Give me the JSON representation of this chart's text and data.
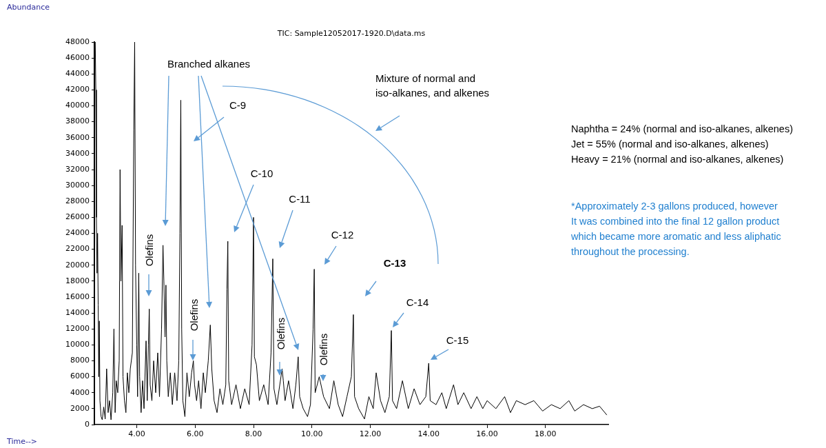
{
  "chart_data": {
    "type": "line",
    "title": "TIC: Sample12052017-1920.D\\data.ms",
    "xlabel": "Time-->",
    "ylabel": "Abundance",
    "xlim": [
      2.55,
      20.15
    ],
    "ylim": [
      0,
      48000
    ],
    "xticks": [
      {
        "value": 4,
        "label": "4.00"
      },
      {
        "value": 6,
        "label": "6.00"
      },
      {
        "value": 8,
        "label": "8.00"
      },
      {
        "value": 10,
        "label": "10.00"
      },
      {
        "value": 12,
        "label": "12.00"
      },
      {
        "value": 14,
        "label": "14.00"
      },
      {
        "value": 16,
        "label": "16.00"
      },
      {
        "value": 18,
        "label": "18.00"
      }
    ],
    "yticks": [
      0,
      2000,
      4000,
      6000,
      8000,
      10000,
      12000,
      14000,
      16000,
      18000,
      20000,
      22000,
      24000,
      26000,
      28000,
      30000,
      32000,
      34000,
      36000,
      38000,
      40000,
      42000,
      44000,
      46000,
      48000
    ],
    "grid": false,
    "legend": false,
    "series": [
      {
        "color": "#000000",
        "x": [
          2.55,
          2.58,
          2.6,
          2.62,
          2.64,
          2.66,
          2.68,
          2.7,
          2.72,
          2.74,
          2.78,
          2.82,
          2.87,
          2.92,
          2.97,
          3.02,
          3.07,
          3.12,
          3.18,
          3.22,
          3.26,
          3.3,
          3.35,
          3.4,
          3.43,
          3.46,
          3.5,
          3.53,
          3.58,
          3.63,
          3.68,
          3.73,
          3.78,
          3.85,
          3.9,
          3.93,
          3.96,
          4.0,
          4.03,
          4.07,
          4.1,
          4.15,
          4.2,
          4.25,
          4.32,
          4.36,
          4.4,
          4.43,
          4.46,
          4.52,
          4.58,
          4.65,
          4.72,
          4.78,
          4.85,
          4.9,
          4.93,
          4.97,
          5.0,
          5.03,
          5.08,
          5.15,
          5.22,
          5.3,
          5.38,
          5.44,
          5.48,
          5.51,
          5.54,
          5.58,
          5.65,
          5.72,
          5.8,
          5.88,
          5.94,
          5.98,
          6.05,
          6.12,
          6.2,
          6.28,
          6.35,
          6.45,
          6.52,
          6.57,
          6.65,
          6.75,
          6.85,
          6.95,
          7.05,
          7.09,
          7.12,
          7.15,
          7.25,
          7.4,
          7.55,
          7.7,
          7.85,
          7.95,
          8.0,
          8.03,
          8.1,
          8.2,
          8.35,
          8.5,
          8.6,
          8.66,
          8.7,
          8.8,
          8.98,
          9.02,
          9.08,
          9.2,
          9.35,
          9.45,
          9.53,
          9.58,
          9.7,
          9.85,
          9.95,
          10.04,
          10.08,
          10.11,
          10.25,
          10.4,
          10.6,
          10.75,
          10.9,
          11.05,
          11.2,
          11.35,
          11.42,
          11.46,
          11.6,
          11.8,
          11.95,
          12.1,
          12.2,
          12.35,
          12.5,
          12.65,
          12.72,
          12.76,
          12.9,
          13.1,
          13.3,
          13.5,
          13.7,
          13.9,
          14.0,
          14.05,
          14.25,
          14.45,
          14.6,
          14.85,
          15.0,
          15.2,
          15.45,
          15.65,
          15.85,
          16.0,
          16.3,
          16.6,
          16.8,
          17.0,
          17.3,
          17.6,
          17.9,
          18.2,
          18.5,
          18.8,
          19.0,
          19.3,
          19.6,
          19.85,
          20.1
        ],
        "values": [
          48000,
          48000,
          42000,
          26000,
          19000,
          24000,
          15000,
          6000,
          13000,
          3000,
          1000,
          600,
          2200,
          700,
          7000,
          1500,
          3000,
          600,
          4000,
          12000,
          1500,
          5500,
          4000,
          8000,
          32000,
          18000,
          25000,
          6000,
          3000,
          1500,
          6500,
          4000,
          7000,
          9000,
          37000,
          48000,
          20000,
          10000,
          3500,
          19000,
          6000,
          1500,
          5500,
          2000,
          10500,
          3000,
          10000,
          14500,
          5000,
          3000,
          8000,
          4000,
          9000,
          3500,
          12000,
          22500,
          18000,
          11000,
          17500,
          8000,
          3500,
          6500,
          2500,
          6500,
          3000,
          8000,
          24000,
          40700,
          12000,
          3000,
          1000,
          6500,
          3500,
          6500,
          8000,
          5000,
          3000,
          5500,
          2000,
          6500,
          4000,
          8000,
          12500,
          7000,
          3000,
          1500,
          4500,
          2500,
          5000,
          17000,
          23000,
          5500,
          2500,
          5000,
          2000,
          4500,
          2500,
          10000,
          26000,
          8500,
          7500,
          3000,
          5000,
          2500,
          9000,
          20800,
          4500,
          2500,
          7000,
          5500,
          3000,
          5500,
          2000,
          5000,
          8500,
          3500,
          2000,
          1000,
          2500,
          12000,
          19500,
          4000,
          6000,
          3500,
          2000,
          5500,
          2500,
          1000,
          3500,
          6000,
          13800,
          3500,
          2000,
          700,
          3500,
          2000,
          6500,
          3000,
          1500,
          3500,
          11800,
          3000,
          2000,
          5500,
          2000,
          4500,
          2500,
          3500,
          7700,
          3000,
          2500,
          4000,
          2000,
          5000,
          2500,
          4000,
          2000,
          3500,
          2000,
          3000,
          2000,
          3500,
          1500,
          3000,
          2500,
          3000,
          1700,
          2500,
          2000,
          3000,
          1700,
          2500,
          2000,
          2300,
          1200
        ]
      }
    ],
    "annotations": [
      "Branched alkanes",
      "C-9",
      "C-10",
      "C-11",
      "C-12",
      "C-13",
      "C-14",
      "C-15",
      "Olefins",
      "Olefins",
      "Olefins",
      "Olefins",
      "Mixture of normal and\niso-alkanes, and alkenes",
      "Naphtha = 24% (normal and iso-alkanes, alkenes)",
      "Jet = 55% (normal and iso-alkanes, alkenes)",
      "Heavy = 21% (normal and iso-alkanes, alkenes)",
      "*Approximately 2-3 gallons produced, however\nIt was combined into the final 12 gallon product\nwhich became more aromatic and less aliphatic\nthroughout the processing."
    ]
  }
}
